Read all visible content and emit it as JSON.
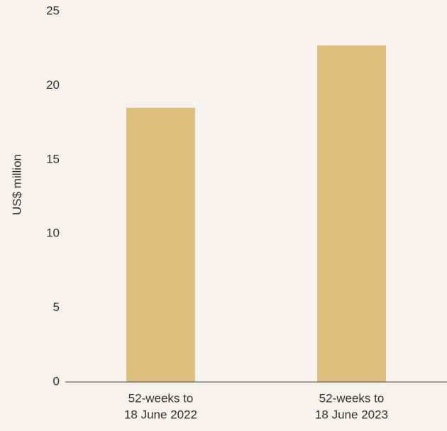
{
  "chart_data": {
    "type": "bar",
    "ylabel": "US$ million",
    "categories": [
      [
        "52-weeks to",
        "18 June 2022"
      ],
      [
        "52-weeks to",
        "18 June 2023"
      ]
    ],
    "values": [
      18.5,
      22.7
    ],
    "color": "#dbbf7a",
    "ylim": [
      0,
      25
    ],
    "yticks": [
      0,
      5,
      10,
      15,
      20,
      25
    ],
    "grid": false
  }
}
